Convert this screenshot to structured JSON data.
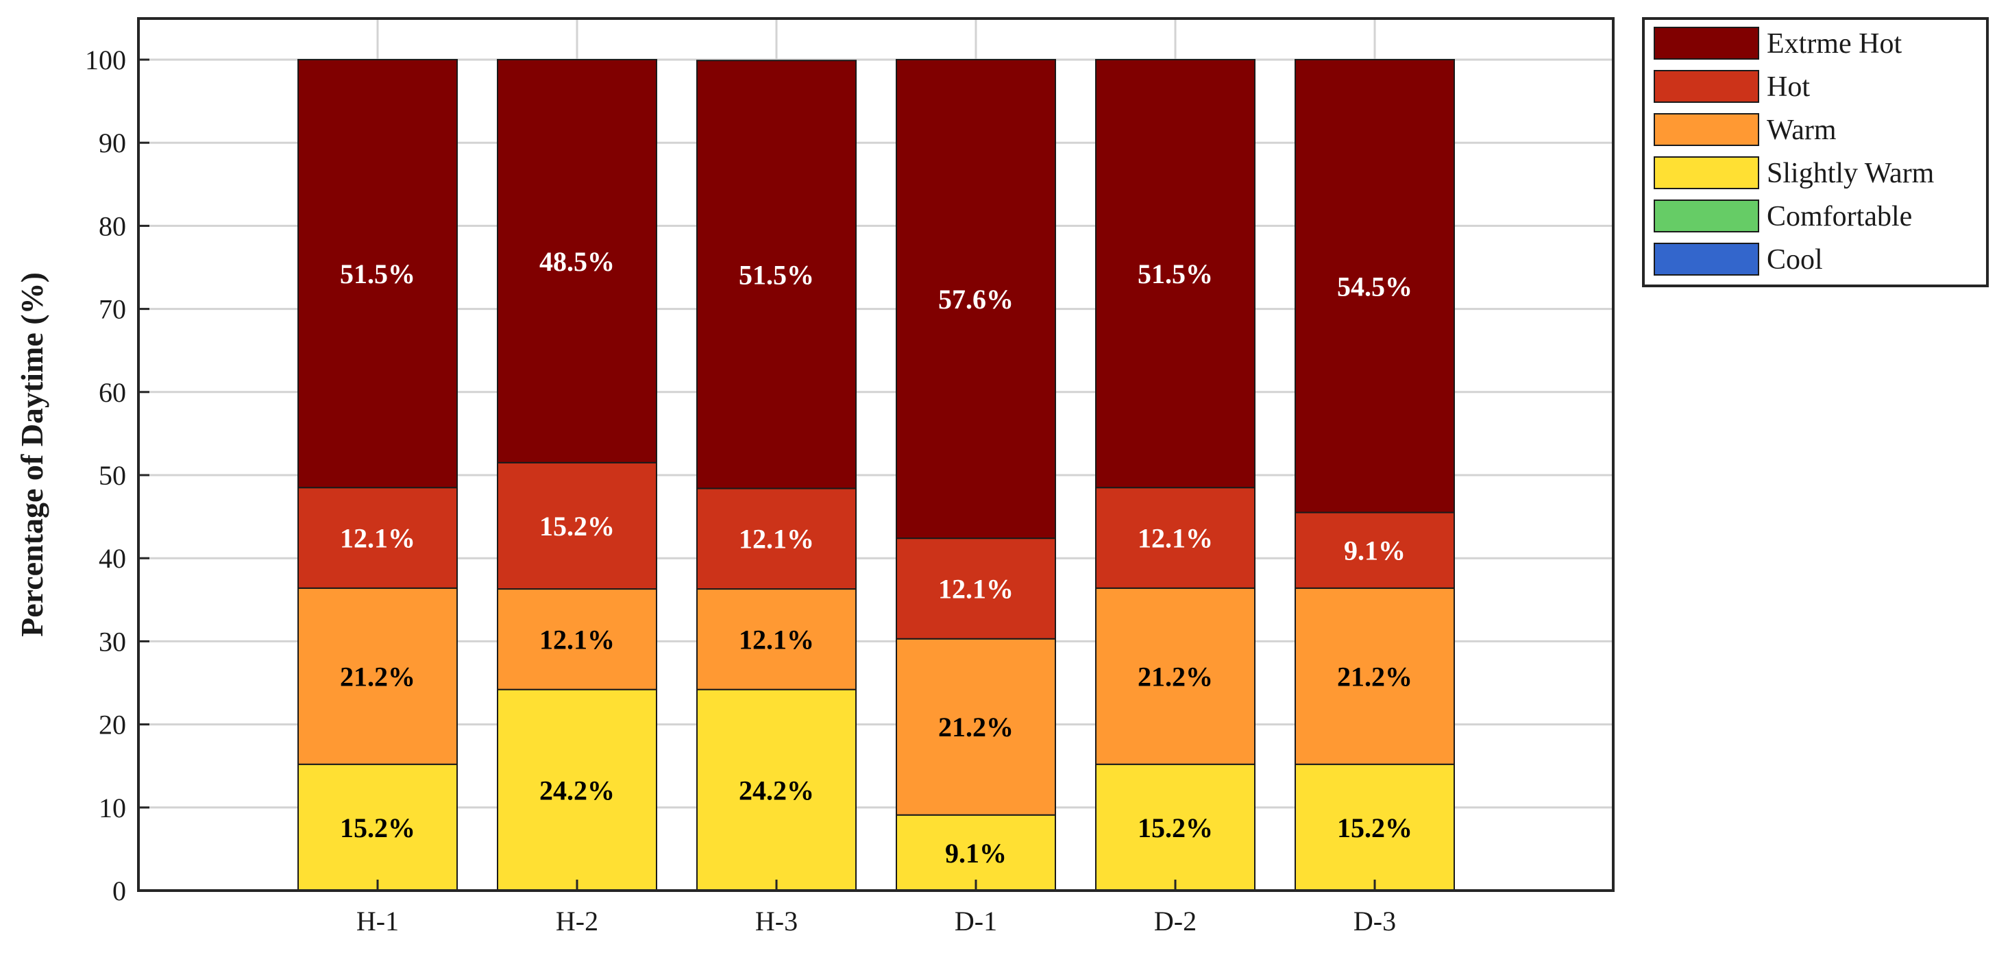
{
  "chart_data": {
    "type": "bar",
    "stacked": true,
    "title": "",
    "xlabel": "",
    "ylabel": "Percentage of Daytime (%)",
    "ylim": [
      0,
      100
    ],
    "yticks": [
      0,
      10,
      20,
      30,
      40,
      50,
      60,
      70,
      80,
      90,
      100
    ],
    "grid": true,
    "legend_position": "outside-top-right",
    "categories": [
      "H-1",
      "H-2",
      "H-3",
      "D-1",
      "D-2",
      "D-3"
    ],
    "series": [
      {
        "name": "Cool",
        "color": "#3366cc",
        "values": [
          0,
          0,
          0,
          0,
          0,
          0
        ],
        "labels": [
          "",
          "",
          "",
          "",
          "",
          ""
        ]
      },
      {
        "name": "Comfortable",
        "color": "#66cc66",
        "values": [
          0,
          0,
          0,
          0,
          0,
          0
        ],
        "labels": [
          "",
          "",
          "",
          "",
          "",
          ""
        ]
      },
      {
        "name": "Slightly Warm",
        "color": "#ffe033",
        "label_color": "#000000",
        "values": [
          15.2,
          24.2,
          24.2,
          9.1,
          15.2,
          15.2
        ],
        "labels": [
          "15.2%",
          "24.2%",
          "24.2%",
          "9.1%",
          "15.2%",
          "15.2%"
        ]
      },
      {
        "name": "Warm",
        "color": "#ff9933",
        "label_color": "#000000",
        "values": [
          21.2,
          12.1,
          12.1,
          21.2,
          21.2,
          21.2
        ],
        "labels": [
          "21.2%",
          "12.1%",
          "12.1%",
          "21.2%",
          "21.2%",
          "21.2%"
        ]
      },
      {
        "name": "Hot",
        "color": "#cc3319",
        "label_color": "#ffffff",
        "values": [
          12.1,
          15.2,
          12.1,
          12.1,
          12.1,
          9.1
        ],
        "labels": [
          "12.1%",
          "15.2%",
          "12.1%",
          "12.1%",
          "12.1%",
          "9.1%"
        ]
      },
      {
        "name": "Extrme Hot",
        "color": "#800000",
        "label_color": "#ffffff",
        "values": [
          51.5,
          48.5,
          51.5,
          57.6,
          51.5,
          54.5
        ],
        "labels": [
          "51.5%",
          "48.5%",
          "51.5%",
          "57.6%",
          "51.5%",
          "54.5%"
        ]
      }
    ],
    "legend_order": [
      "Extrme Hot",
      "Hot",
      "Warm",
      "Slightly Warm",
      "Comfortable",
      "Cool"
    ]
  }
}
